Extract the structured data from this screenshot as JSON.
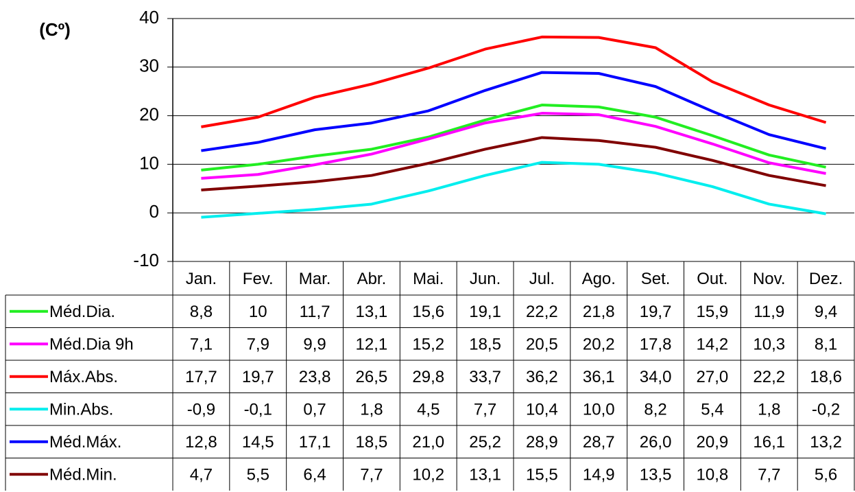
{
  "chart_data": {
    "type": "line",
    "y_label": "(Cº)",
    "categories": [
      "Jan.",
      "Fev.",
      "Mar.",
      "Abr.",
      "Mai.",
      "Jun.",
      "Jul.",
      "Ago.",
      "Set.",
      "Out.",
      "Nov.",
      "Dez."
    ],
    "ylim": [
      -10,
      40
    ],
    "yticks": [
      -10,
      0,
      10,
      20,
      30,
      40
    ],
    "grid": true,
    "series": [
      {
        "name": "Méd.Dia.",
        "color": "#22ee22",
        "values": [
          8.8,
          10,
          11.7,
          13.1,
          15.6,
          19.1,
          22.2,
          21.8,
          19.7,
          15.9,
          11.9,
          9.4
        ],
        "value_labels": [
          "8,8",
          "10",
          "11,7",
          "13,1",
          "15,6",
          "19,1",
          "22,2",
          "21,8",
          "19,7",
          "15,9",
          "11,9",
          "9,4"
        ]
      },
      {
        "name": "Méd.Dia 9h",
        "color": "#ff00ff",
        "values": [
          7.1,
          7.9,
          9.9,
          12.1,
          15.2,
          18.5,
          20.5,
          20.2,
          17.8,
          14.2,
          10.3,
          8.1
        ],
        "value_labels": [
          "7,1",
          "7,9",
          "9,9",
          "12,1",
          "15,2",
          "18,5",
          "20,5",
          "20,2",
          "17,8",
          "14,2",
          "10,3",
          "8,1"
        ]
      },
      {
        "name": "Máx.Abs.",
        "color": "#ff0000",
        "values": [
          17.7,
          19.7,
          23.8,
          26.5,
          29.8,
          33.7,
          36.2,
          36.1,
          34.0,
          27.0,
          22.2,
          18.6
        ],
        "value_labels": [
          "17,7",
          "19,7",
          "23,8",
          "26,5",
          "29,8",
          "33,7",
          "36,2",
          "36,1",
          "34,0",
          "27,0",
          "22,2",
          "18,6"
        ]
      },
      {
        "name": "Min.Abs.",
        "color": "#00eeee",
        "values": [
          -0.9,
          -0.1,
          0.7,
          1.8,
          4.5,
          7.7,
          10.4,
          10.0,
          8.2,
          5.4,
          1.8,
          -0.2
        ],
        "value_labels": [
          "-0,9",
          "-0,1",
          "0,7",
          "1,8",
          "4,5",
          "7,7",
          "10,4",
          "10,0",
          "8,2",
          "5,4",
          "1,8",
          "-0,2"
        ]
      },
      {
        "name": "Méd.Máx.",
        "color": "#0000ff",
        "values": [
          12.8,
          14.5,
          17.1,
          18.5,
          21.0,
          25.2,
          28.9,
          28.7,
          26.0,
          20.9,
          16.1,
          13.2
        ],
        "value_labels": [
          "12,8",
          "14,5",
          "17,1",
          "18,5",
          "21,0",
          "25,2",
          "28,9",
          "28,7",
          "26,0",
          "20,9",
          "16,1",
          "13,2"
        ]
      },
      {
        "name": "Méd.Min.",
        "color": "#800000",
        "values": [
          4.7,
          5.5,
          6.4,
          7.7,
          10.2,
          13.1,
          15.5,
          14.9,
          13.5,
          10.8,
          7.7,
          5.6
        ],
        "value_labels": [
          "4,7",
          "5,5",
          "6,4",
          "7,7",
          "10,2",
          "13,1",
          "15,5",
          "14,9",
          "13,5",
          "10,8",
          "7,7",
          "5,6"
        ]
      }
    ]
  }
}
